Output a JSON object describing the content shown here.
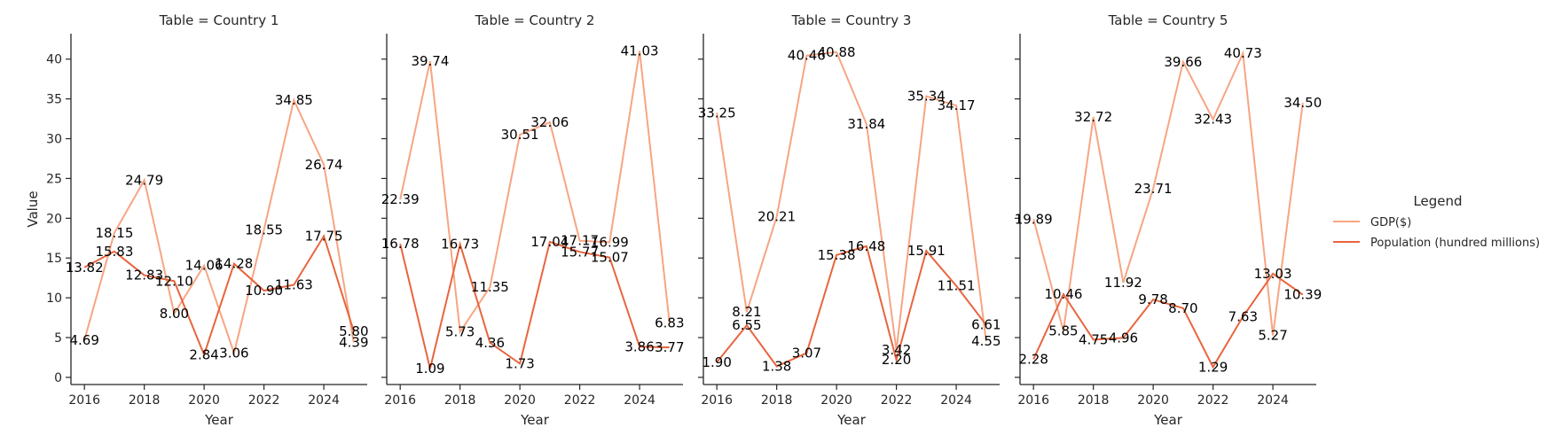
{
  "chart_data": {
    "type": "line",
    "legend_title": "Legend",
    "legend_position": "right",
    "xlabel": "Year",
    "ylabel": "Value",
    "xticks": [
      "2016",
      "2018",
      "2020",
      "2022",
      "2024"
    ],
    "yticks": [
      "0",
      "5",
      "10",
      "15",
      "20",
      "25",
      "30",
      "35",
      "40"
    ],
    "xlim": [
      2015.55,
      2025.45
    ],
    "ylim": [
      -0.9,
      43.2
    ],
    "x": [
      2016,
      2017,
      2018,
      2019,
      2020,
      2021,
      2022,
      2023,
      2024,
      2025
    ],
    "series_style": [
      {
        "name": "GDP($)",
        "color": "#f7a583"
      },
      {
        "name": "Population (hundred millions)",
        "color": "#e8653e"
      }
    ],
    "panels": [
      {
        "title": "Table = Country 1",
        "series": [
          {
            "name": "GDP($)",
            "values": [
              4.69,
              18.15,
              24.79,
              8.0,
              14.06,
              3.06,
              18.55,
              34.85,
              26.74,
              4.39
            ],
            "labels": [
              "4.69",
              "18.15",
              "24.79",
              "8.00",
              "14.06",
              "3.06",
              "18.55",
              "34.85",
              "26.74",
              "4.39"
            ]
          },
          {
            "name": "Population (hundred millions)",
            "values": [
              13.82,
              15.83,
              12.83,
              12.1,
              2.84,
              14.28,
              10.9,
              11.63,
              17.75,
              5.8
            ],
            "labels": [
              "13.82",
              "15.83",
              "12.83",
              "12.10",
              "2.84",
              "14.28",
              "10.90",
              "11.63",
              "17.75",
              "5.80"
            ]
          }
        ]
      },
      {
        "title": "Table = Country 2",
        "series": [
          {
            "name": "GDP($)",
            "values": [
              22.39,
              39.74,
              5.73,
              11.35,
              30.51,
              32.06,
              17.17,
              16.99,
              41.03,
              6.83
            ],
            "labels": [
              "22.39",
              "39.74",
              "5.73",
              "11.35",
              "30.51",
              "32.06",
              "17.17",
              "16.99",
              "41.03",
              "6.83"
            ]
          },
          {
            "name": "Population (hundred millions)",
            "values": [
              16.78,
              1.09,
              16.73,
              4.36,
              1.73,
              17.04,
              15.77,
              15.07,
              3.86,
              3.77
            ],
            "labels": [
              "16.78",
              "1.09",
              "16.73",
              "4.36",
              "1.73",
              "17.04",
              "15.77",
              "15.07",
              "3.86",
              "3.77"
            ]
          }
        ]
      },
      {
        "title": "Table = Country 3",
        "series": [
          {
            "name": "GDP($)",
            "values": [
              33.25,
              8.21,
              20.21,
              40.46,
              40.88,
              31.84,
              3.42,
              35.34,
              34.17,
              4.55
            ],
            "labels": [
              "33.25",
              "8.21",
              "20.21",
              "40.46",
              "40.88",
              "31.84",
              "3.42",
              "35.34",
              "34.17",
              "4.55"
            ]
          },
          {
            "name": "Population (hundred millions)",
            "values": [
              1.9,
              6.55,
              1.38,
              3.07,
              15.38,
              16.48,
              2.2,
              15.91,
              11.51,
              6.61
            ],
            "labels": [
              "1.90",
              "6.55",
              "1.38",
              "3.07",
              "15.38",
              "16.48",
              "2.20",
              "15.91",
              "11.51",
              "6.61"
            ]
          }
        ]
      },
      {
        "title": "Table = Country 5",
        "series": [
          {
            "name": "GDP($)",
            "values": [
              19.89,
              5.85,
              32.72,
              11.92,
              23.71,
              39.66,
              32.43,
              40.73,
              5.27,
              34.5
            ],
            "labels": [
              "19.89",
              "5.85",
              "32.72",
              "11.92",
              "23.71",
              "39.66",
              "32.43",
              "40.73",
              "5.27",
              "34.50"
            ]
          },
          {
            "name": "Population (hundred millions)",
            "values": [
              2.28,
              10.46,
              4.75,
              4.96,
              9.78,
              8.7,
              1.29,
              7.63,
              13.03,
              10.39
            ],
            "labels": [
              "2.28",
              "10.46",
              "4.75",
              "4.96",
              "9.78",
              "8.70",
              "1.29",
              "7.63",
              "13.03",
              "10.39"
            ]
          }
        ]
      }
    ]
  }
}
